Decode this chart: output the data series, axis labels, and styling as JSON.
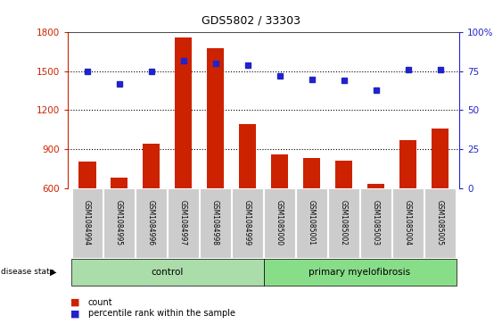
{
  "title": "GDS5802 / 33303",
  "samples": [
    "GSM1084994",
    "GSM1084995",
    "GSM1084996",
    "GSM1084997",
    "GSM1084998",
    "GSM1084999",
    "GSM1085000",
    "GSM1085001",
    "GSM1085002",
    "GSM1085003",
    "GSM1085004",
    "GSM1085005"
  ],
  "counts": [
    800,
    680,
    940,
    1760,
    1680,
    1090,
    860,
    830,
    810,
    630,
    970,
    1060
  ],
  "percentiles": [
    75,
    67,
    75,
    82,
    80,
    79,
    72,
    70,
    69,
    63,
    76,
    76
  ],
  "ymin": 600,
  "ymax": 1800,
  "yticks": [
    600,
    900,
    1200,
    1500,
    1800
  ],
  "right_yticks": [
    0,
    25,
    50,
    75,
    100
  ],
  "bar_color": "#cc2200",
  "dot_color": "#2222cc",
  "control_count": 6,
  "control_label": "control",
  "disease_label": "primary myelofibrosis",
  "control_bg": "#aaddaa",
  "disease_bg": "#88dd88",
  "sample_bg": "#cccccc",
  "legend_count_label": "count",
  "legend_pct_label": "percentile rank within the sample",
  "dotted_lines": [
    900,
    1200,
    1500
  ]
}
